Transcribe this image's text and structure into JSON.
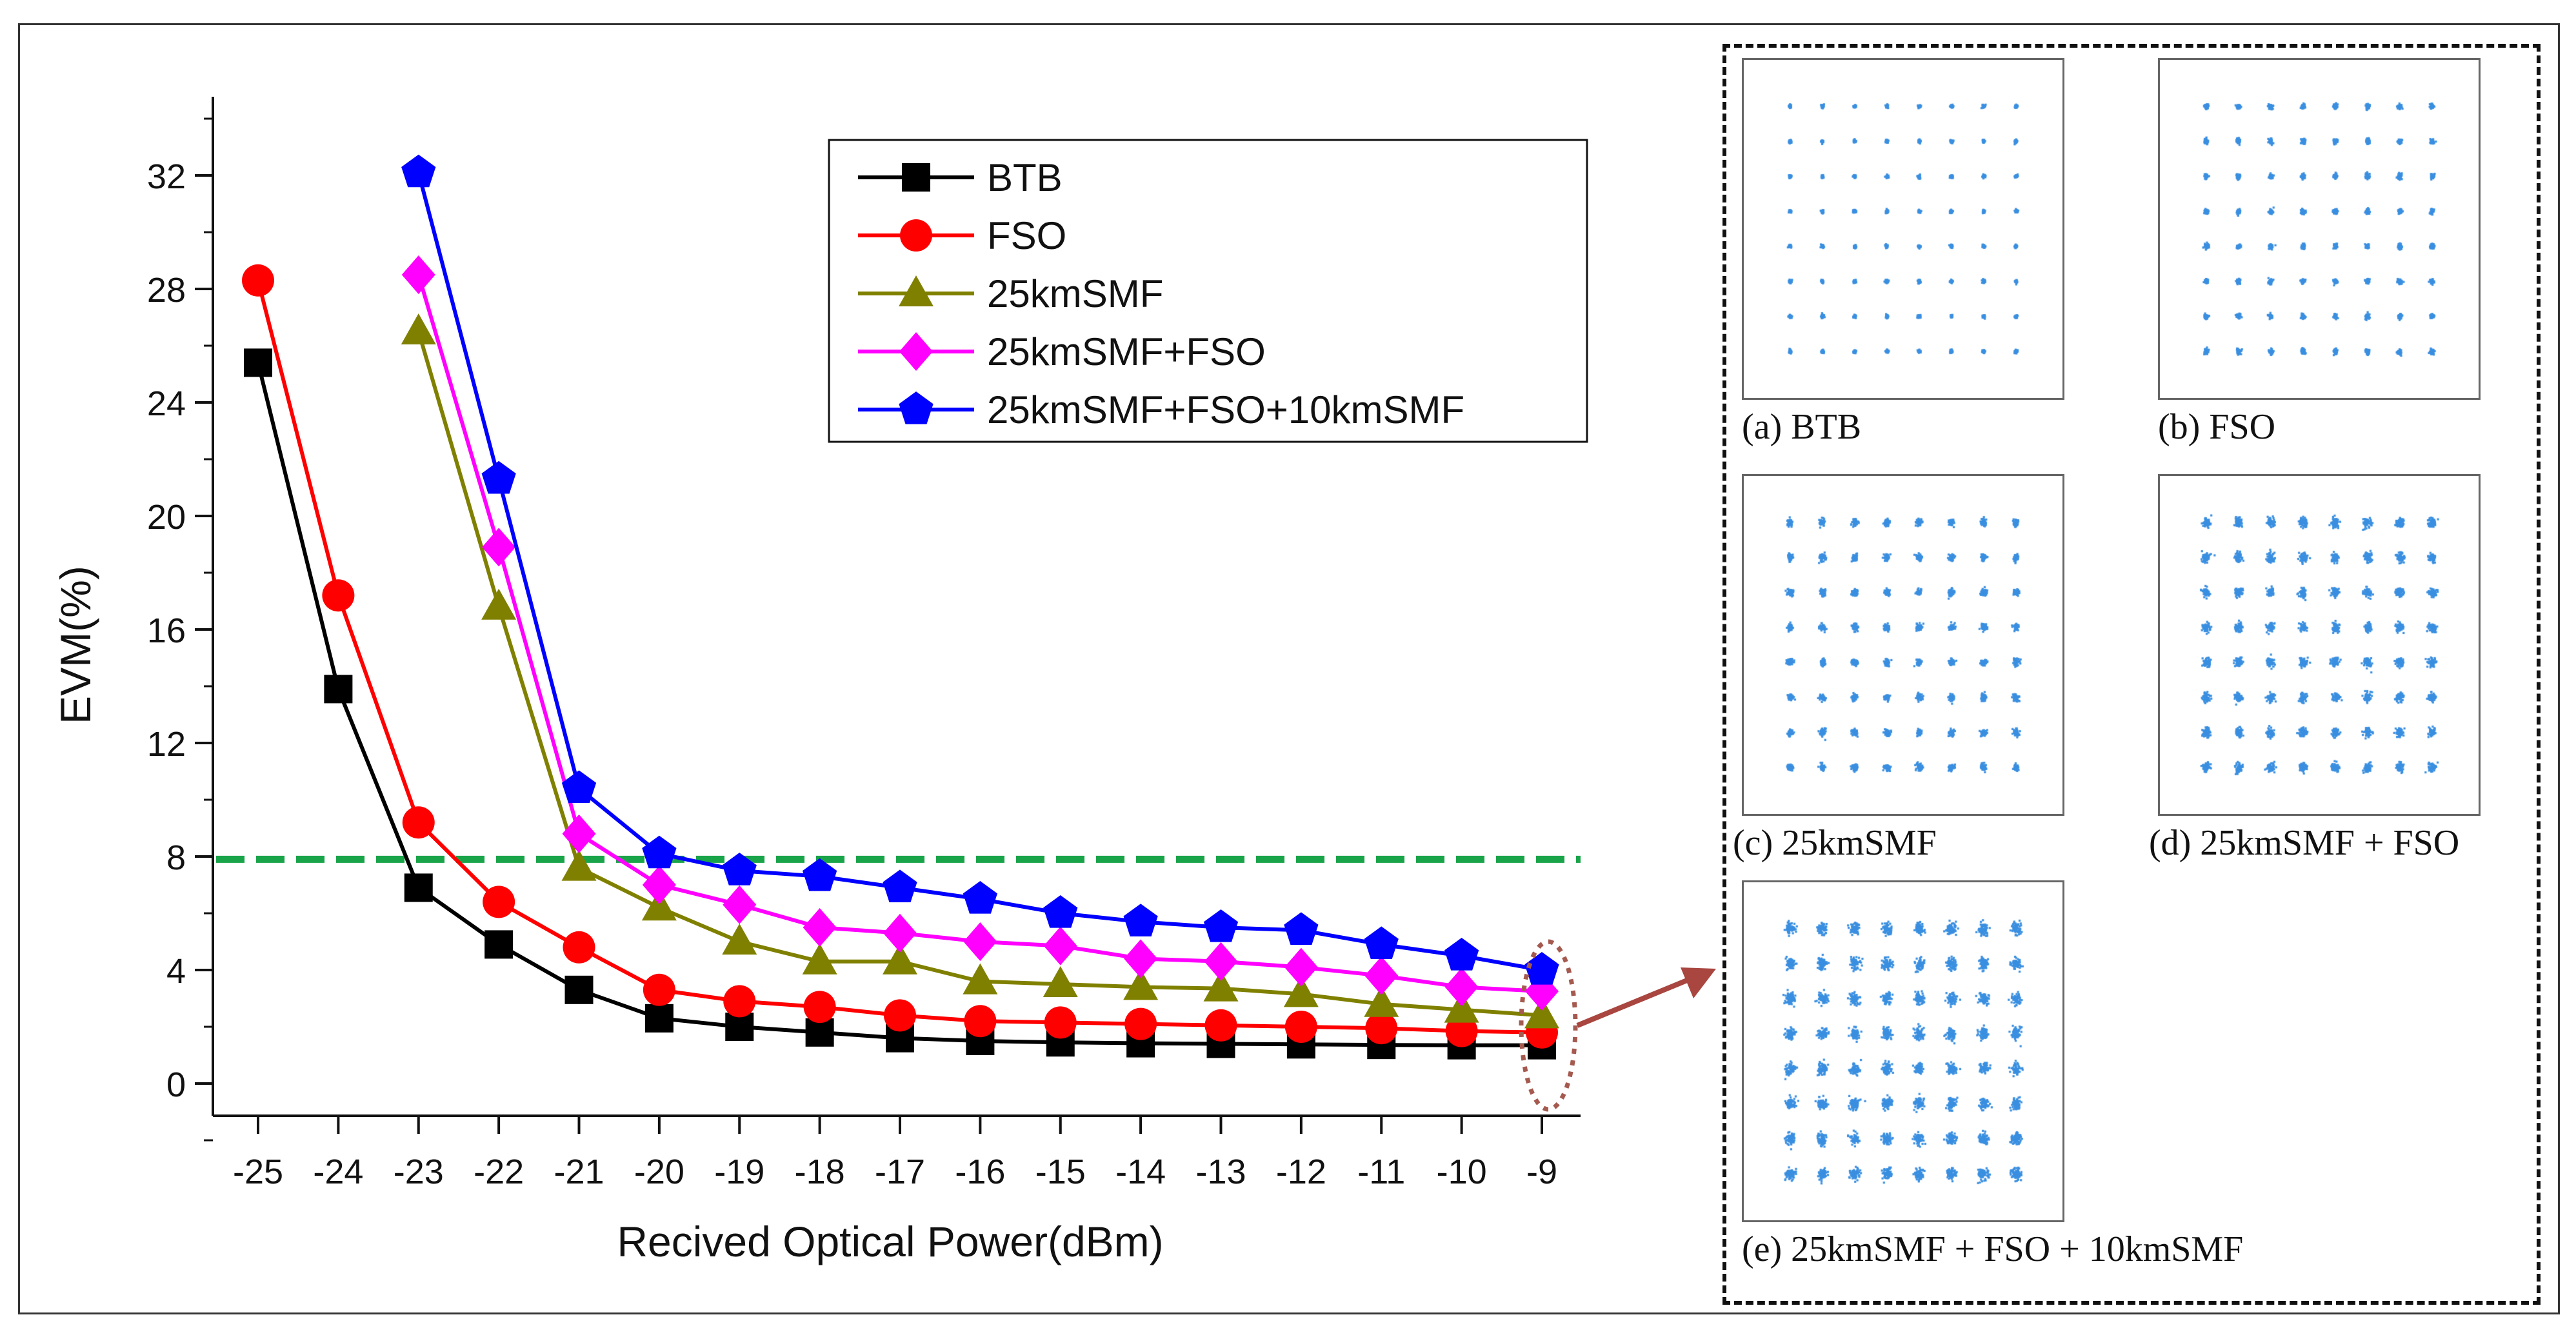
{
  "chart_data": {
    "type": "line",
    "xlabel": "Recived Optical Power(dBm)",
    "ylabel": "EVM(%)",
    "xlim": [
      -25,
      -9
    ],
    "ylim": [
      0,
      35
    ],
    "x_ticks": [
      "-25",
      "-24",
      "-23",
      "-22",
      "-21",
      "-20",
      "-19",
      "-18",
      "-17",
      "-16",
      "-15",
      "-14",
      "-13",
      "-12",
      "-11",
      "-10",
      "-9"
    ],
    "y_ticks": [
      "0",
      "4",
      "8",
      "12",
      "16",
      "20",
      "24",
      "28",
      "32"
    ],
    "grid": false,
    "legend": "top-center",
    "threshold": {
      "y": 7.9,
      "color": "#1aa44a",
      "style": "dashed"
    },
    "series": [
      {
        "name": "BTB",
        "color": "#000000",
        "marker": "square",
        "x": [
          -25,
          -24,
          -23,
          -22,
          -21,
          -20,
          -19,
          -18,
          -17,
          -16,
          -15,
          -14,
          -13,
          -12,
          -11,
          -10,
          -9
        ],
        "y": [
          25.4,
          13.9,
          6.9,
          4.9,
          3.3,
          2.3,
          2.0,
          1.8,
          1.6,
          1.5,
          1.45,
          1.42,
          1.4,
          1.38,
          1.36,
          1.35,
          1.35
        ]
      },
      {
        "name": "FSO",
        "color": "#ff0000",
        "marker": "circle",
        "x": [
          -25,
          -24,
          -23,
          -22,
          -21,
          -20,
          -19,
          -18,
          -17,
          -16,
          -15,
          -14,
          -13,
          -12,
          -11,
          -10,
          -9
        ],
        "y": [
          28.3,
          17.2,
          9.2,
          6.4,
          4.8,
          3.3,
          2.9,
          2.7,
          2.4,
          2.2,
          2.15,
          2.1,
          2.05,
          2.0,
          1.95,
          1.85,
          1.8
        ]
      },
      {
        "name": "25kmSMF",
        "color": "#808000",
        "marker": "triangle",
        "x": [
          -23,
          -22,
          -21,
          -20,
          -19,
          -18,
          -17,
          -16,
          -15,
          -14,
          -13,
          -12,
          -11,
          -10,
          -9
        ],
        "y": [
          26.5,
          16.8,
          7.6,
          6.2,
          5.0,
          4.3,
          4.3,
          3.6,
          3.5,
          3.4,
          3.35,
          3.15,
          2.8,
          2.6,
          2.4
        ]
      },
      {
        "name": "25kmSMF+FSO",
        "color": "#ff00ff",
        "marker": "diamond",
        "x": [
          -23,
          -22,
          -21,
          -20,
          -19,
          -18,
          -17,
          -16,
          -15,
          -14,
          -13,
          -12,
          -11,
          -10,
          -9
        ],
        "y": [
          28.5,
          18.9,
          8.8,
          7.0,
          6.3,
          5.5,
          5.3,
          5.0,
          4.85,
          4.4,
          4.3,
          4.1,
          3.8,
          3.4,
          3.25
        ]
      },
      {
        "name": "25kmSMF+FSO+10kmSMF",
        "color": "#0000ff",
        "marker": "pentagon",
        "x": [
          -23,
          -22,
          -21,
          -20,
          -19,
          -18,
          -17,
          -16,
          -15,
          -14,
          -13,
          -12,
          -11,
          -10,
          -9
        ],
        "y": [
          32.1,
          21.3,
          10.4,
          8.1,
          7.5,
          7.3,
          6.9,
          6.5,
          6.0,
          5.7,
          5.5,
          5.4,
          4.9,
          4.5,
          4.0
        ]
      }
    ]
  },
  "constellations": {
    "dot_color": "#3a8fe0",
    "grid": "8x8",
    "panels": [
      {
        "id": "a",
        "caption": "(a) BTB",
        "spread": 0.35
      },
      {
        "id": "b",
        "caption": "(b) FSO",
        "spread": 0.55
      },
      {
        "id": "c",
        "caption": "(c) 25kmSMF",
        "spread": 0.75
      },
      {
        "id": "d",
        "caption": "(d) 25kmSMF  + FSO",
        "spread": 1.0
      },
      {
        "id": "e",
        "caption": "(e) 25kmSMF  + FSO + 10kmSMF",
        "spread": 1.25
      }
    ]
  }
}
